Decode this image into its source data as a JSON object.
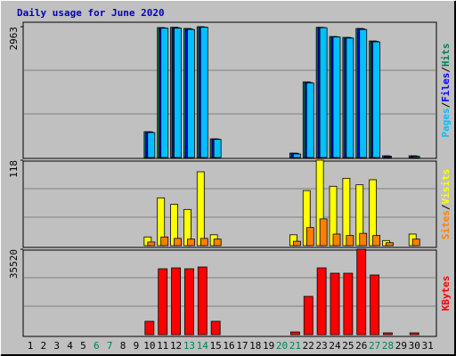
{
  "title": "Daily usage for June 2020",
  "chart_data": [
    {
      "type": "bar",
      "categories": [
        "1",
        "2",
        "3",
        "4",
        "5",
        "6",
        "7",
        "8",
        "9",
        "10",
        "11",
        "12",
        "13",
        "14",
        "15",
        "16",
        "17",
        "18",
        "19",
        "20",
        "21",
        "22",
        "23",
        "24",
        "25",
        "26",
        "27",
        "28",
        "29",
        "30",
        "31"
      ],
      "ylim": [
        0,
        2963
      ],
      "yticks": [
        2963
      ],
      "legend_separator": "/",
      "series": [
        {
          "name": "Hits",
          "color": "#00805c",
          "values": [
            0,
            0,
            0,
            0,
            0,
            0,
            0,
            0,
            0,
            585,
            2943,
            2950,
            2923,
            2963,
            423,
            0,
            0,
            0,
            0,
            0,
            100,
            1713,
            2950,
            2741,
            2721,
            2923,
            2640,
            40,
            0,
            40,
            0
          ]
        },
        {
          "name": "Files",
          "color": "#0000ff",
          "values": [
            0,
            0,
            0,
            0,
            0,
            0,
            0,
            0,
            0,
            580,
            2935,
            2940,
            2910,
            2955,
            420,
            0,
            0,
            0,
            0,
            0,
            95,
            1700,
            2945,
            2735,
            2715,
            2915,
            2630,
            30,
            0,
            35,
            0
          ]
        },
        {
          "name": "Pages",
          "color": "#00c0ff",
          "values": [
            0,
            0,
            0,
            0,
            0,
            0,
            0,
            0,
            0,
            565,
            2930,
            2930,
            2900,
            2950,
            410,
            0,
            0,
            0,
            0,
            0,
            80,
            1690,
            2940,
            2730,
            2705,
            2900,
            2620,
            0,
            0,
            25,
            0
          ]
        }
      ]
    },
    {
      "type": "bar",
      "categories": [
        "1",
        "2",
        "3",
        "4",
        "5",
        "6",
        "7",
        "8",
        "9",
        "10",
        "11",
        "12",
        "13",
        "14",
        "15",
        "16",
        "17",
        "18",
        "19",
        "20",
        "21",
        "22",
        "23",
        "24",
        "25",
        "26",
        "27",
        "28",
        "29",
        "30",
        "31"
      ],
      "ylim": [
        0,
        118
      ],
      "yticks": [
        118
      ],
      "legend_separator": "/",
      "series": [
        {
          "name": "Visits",
          "color": "#ffff00",
          "values": [
            0,
            0,
            0,
            0,
            0,
            0,
            0,
            0,
            0,
            12,
            66,
            57,
            50,
            102,
            15,
            0,
            0,
            0,
            0,
            0,
            15,
            76,
            118,
            82,
            93,
            84,
            91,
            7,
            0,
            16,
            0
          ]
        },
        {
          "name": "Sites",
          "color": "#ff8000",
          "values": [
            0,
            0,
            0,
            0,
            0,
            0,
            0,
            0,
            0,
            5,
            12,
            10,
            9,
            10,
            9,
            0,
            0,
            0,
            0,
            0,
            6,
            25,
            37,
            16,
            14,
            17,
            14,
            4,
            0,
            9,
            0
          ]
        }
      ]
    },
    {
      "type": "bar",
      "categories": [
        "1",
        "2",
        "3",
        "4",
        "5",
        "6",
        "7",
        "8",
        "9",
        "10",
        "11",
        "12",
        "13",
        "14",
        "15",
        "16",
        "17",
        "18",
        "19",
        "20",
        "21",
        "22",
        "23",
        "24",
        "25",
        "26",
        "27",
        "28",
        "29",
        "30",
        "31"
      ],
      "category_colors": [
        "#000000",
        "#000000",
        "#000000",
        "#000000",
        "#000000",
        "#00805c",
        "#00805c",
        "#000000",
        "#000000",
        "#000000",
        "#000000",
        "#000000",
        "#00805c",
        "#00805c",
        "#000000",
        "#000000",
        "#000000",
        "#000000",
        "#000000",
        "#00805c",
        "#00805c",
        "#000000",
        "#000000",
        "#000000",
        "#000000",
        "#000000",
        "#00805c",
        "#00805c",
        "#000000",
        "#000000",
        "#000000"
      ],
      "ylim": [
        0,
        35520
      ],
      "yticks": [
        35520
      ],
      "legend_separator": "/",
      "series": [
        {
          "name": "KBytes",
          "color": "#ff0000",
          "values": [
            0,
            0,
            0,
            0,
            0,
            0,
            0,
            0,
            0,
            5550,
            27380,
            27750,
            27380,
            28120,
            5550,
            0,
            0,
            0,
            0,
            0,
            1110,
            15910,
            27750,
            25530,
            25530,
            35520,
            24790,
            740,
            0,
            740,
            0
          ]
        }
      ]
    }
  ]
}
